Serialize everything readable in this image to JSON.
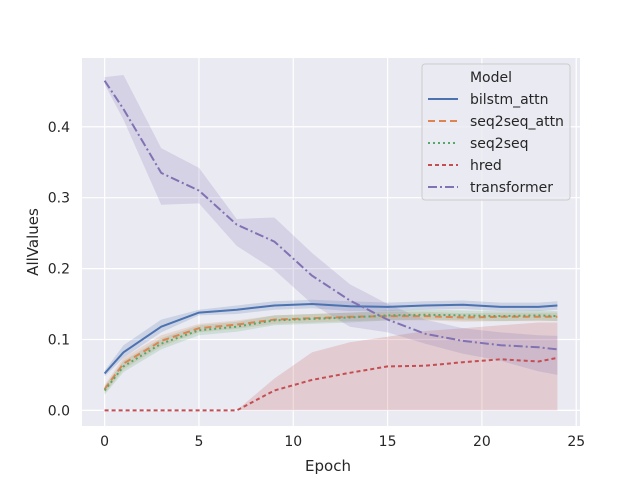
{
  "chart_data": {
    "type": "line",
    "title": "",
    "xlabel": "Epoch",
    "ylabel": "AllValues",
    "xlim": [
      -1.2,
      25.2
    ],
    "ylim": [
      -0.022,
      0.497
    ],
    "xticks": [
      0,
      5,
      10,
      15,
      20,
      25
    ],
    "xtick_labels": [
      "0",
      "5",
      "10",
      "15",
      "20",
      "25"
    ],
    "yticks": [
      0.0,
      0.1,
      0.2,
      0.3,
      0.4
    ],
    "ytick_labels": [
      "0.0",
      "0.1",
      "0.2",
      "0.3",
      "0.4"
    ],
    "grid": true,
    "legend": {
      "title": "Model",
      "position": "top-right"
    },
    "x": [
      0,
      1,
      3,
      5,
      7,
      9,
      11,
      13,
      15,
      17,
      19,
      21,
      23,
      24
    ],
    "series": [
      {
        "name": "bilstm_attn",
        "color": "#4c72b0",
        "dash": "solid",
        "values": [
          0.052,
          0.082,
          0.118,
          0.138,
          0.142,
          0.148,
          0.15,
          0.147,
          0.146,
          0.148,
          0.149,
          0.146,
          0.146,
          0.148
        ],
        "ci_low": [
          0.048,
          0.074,
          0.11,
          0.134,
          0.136,
          0.142,
          0.144,
          0.14,
          0.14,
          0.142,
          0.143,
          0.14,
          0.14,
          0.142
        ],
        "ci_high": [
          0.056,
          0.092,
          0.128,
          0.142,
          0.148,
          0.154,
          0.156,
          0.154,
          0.152,
          0.154,
          0.155,
          0.152,
          0.152,
          0.154
        ]
      },
      {
        "name": "seq2seq_attn",
        "color": "#dd8452",
        "dash": "dashed",
        "values": [
          0.03,
          0.066,
          0.098,
          0.116,
          0.121,
          0.128,
          0.13,
          0.132,
          0.133,
          0.133,
          0.131,
          0.132,
          0.132,
          0.132
        ],
        "ci_low": [
          0.024,
          0.058,
          0.09,
          0.11,
          0.115,
          0.122,
          0.124,
          0.126,
          0.127,
          0.127,
          0.125,
          0.126,
          0.126,
          0.126
        ],
        "ci_high": [
          0.036,
          0.074,
          0.106,
          0.122,
          0.127,
          0.134,
          0.136,
          0.138,
          0.139,
          0.139,
          0.137,
          0.138,
          0.138,
          0.138
        ]
      },
      {
        "name": "seq2seq",
        "color": "#55a868",
        "dash": "dotted",
        "values": [
          0.028,
          0.062,
          0.094,
          0.113,
          0.118,
          0.127,
          0.129,
          0.131,
          0.134,
          0.135,
          0.134,
          0.133,
          0.134,
          0.133
        ],
        "ci_low": [
          0.022,
          0.054,
          0.086,
          0.106,
          0.111,
          0.12,
          0.122,
          0.124,
          0.127,
          0.128,
          0.127,
          0.126,
          0.127,
          0.126
        ],
        "ci_high": [
          0.034,
          0.07,
          0.102,
          0.12,
          0.125,
          0.134,
          0.136,
          0.138,
          0.141,
          0.142,
          0.141,
          0.14,
          0.141,
          0.14
        ]
      },
      {
        "name": "hred",
        "color": "#c44e52",
        "dash": "dashdot-short",
        "values": [
          0.0,
          0.0,
          0.0,
          0.0,
          0.0,
          0.028,
          0.043,
          0.053,
          0.062,
          0.063,
          0.068,
          0.072,
          0.069,
          0.074
        ],
        "ci_low": [
          0.0,
          0.0,
          0.0,
          0.0,
          0.0,
          0.0,
          0.0,
          0.0,
          0.0,
          0.0,
          0.0,
          0.0,
          0.0,
          0.0
        ],
        "ci_high": [
          0.0,
          0.0,
          0.0,
          0.0,
          0.0,
          0.045,
          0.082,
          0.096,
          0.104,
          0.112,
          0.116,
          0.12,
          0.124,
          0.124
        ]
      },
      {
        "name": "transformer",
        "color": "#8172b3",
        "dash": "dashdot",
        "values": [
          0.465,
          0.425,
          0.335,
          0.31,
          0.262,
          0.238,
          0.19,
          0.155,
          0.128,
          0.108,
          0.098,
          0.092,
          0.089,
          0.086
        ],
        "ci_low": [
          0.46,
          0.41,
          0.29,
          0.292,
          0.232,
          0.198,
          0.15,
          0.118,
          0.11,
          0.094,
          0.08,
          0.07,
          0.055,
          0.05
        ],
        "ci_high": [
          0.47,
          0.473,
          0.37,
          0.342,
          0.27,
          0.272,
          0.222,
          0.178,
          0.15,
          0.128,
          0.116,
          0.11,
          0.106,
          0.105
        ]
      }
    ]
  }
}
